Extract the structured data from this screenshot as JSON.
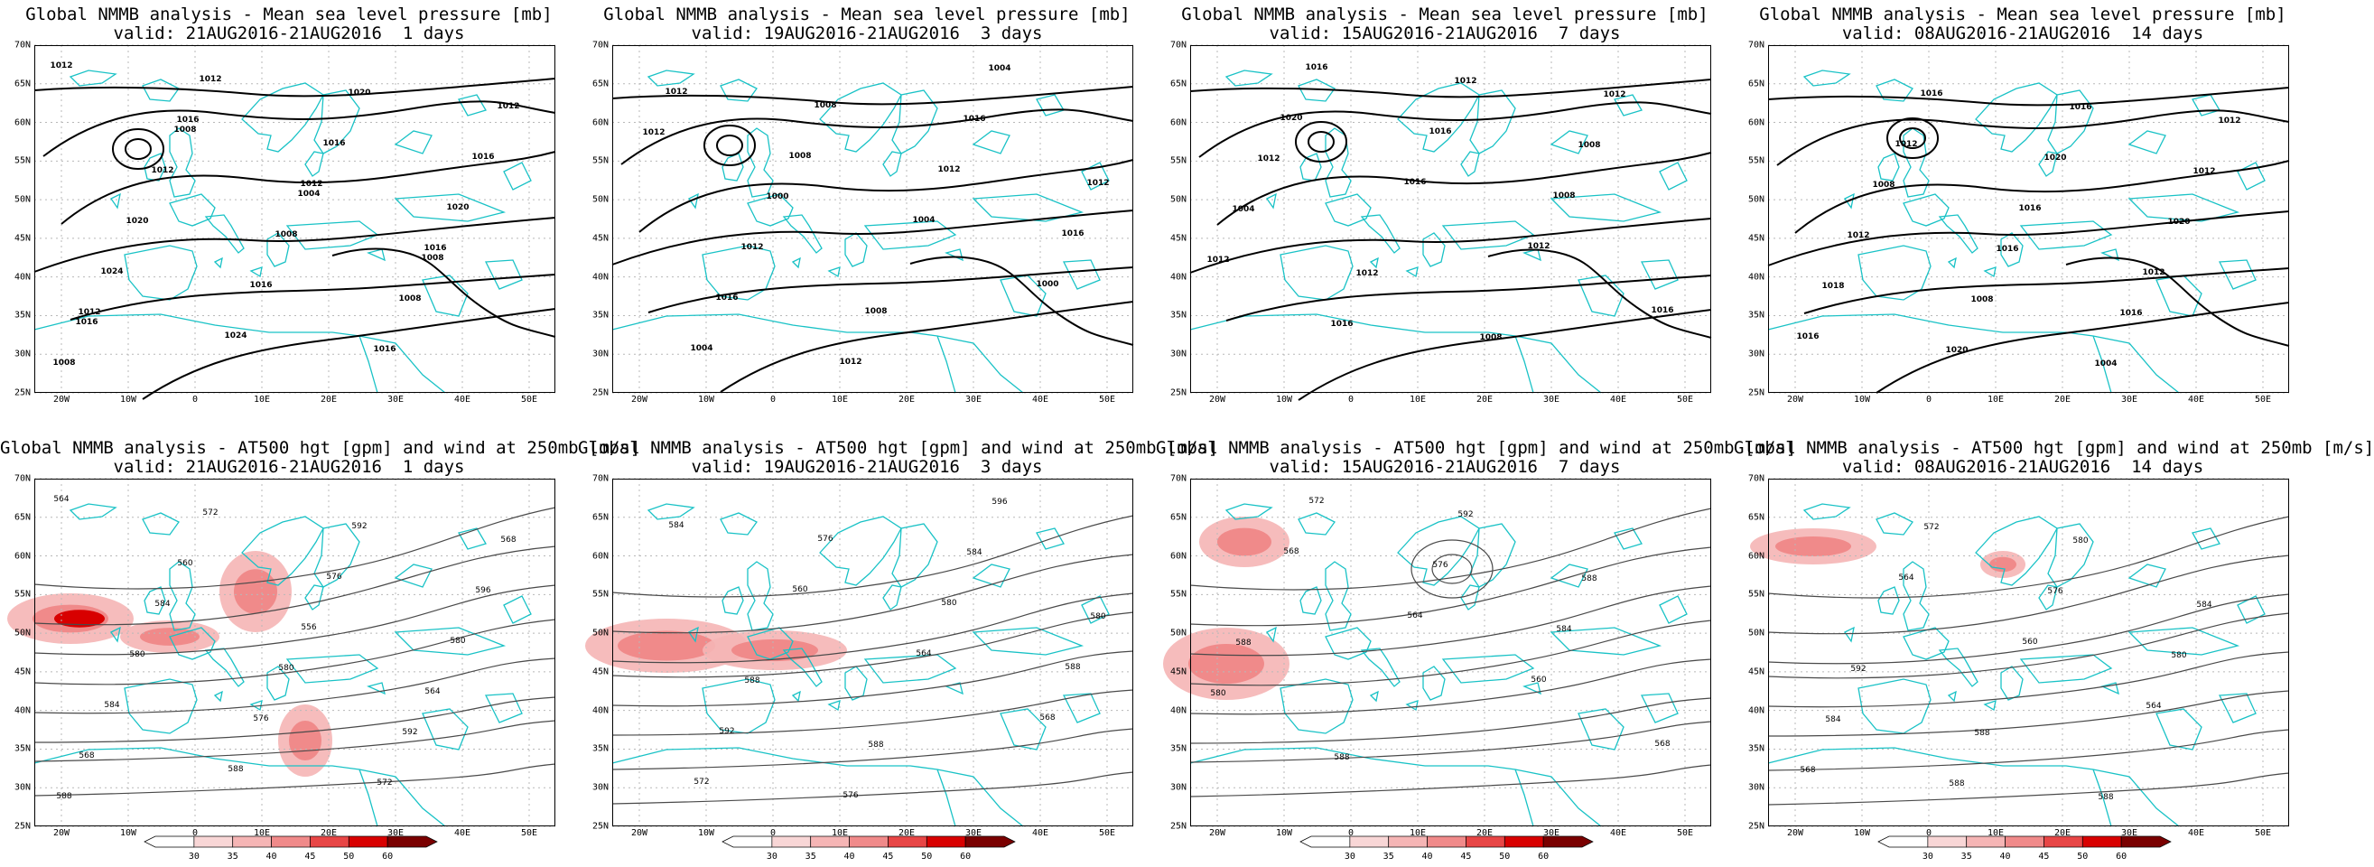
{
  "colors": {
    "coastline": "#19c2c6",
    "isobar": "#000000",
    "contour": "#4a4a4a",
    "grid": "#b8b8b8",
    "wind_scale": [
      "#ffffff",
      "#f8d6d6",
      "#f5b5b5",
      "#f08a8a",
      "#e84646",
      "#d80000",
      "#7a0000"
    ]
  },
  "axes": {
    "lat_labels": [
      "70N",
      "65N",
      "60N",
      "55N",
      "50N",
      "45N",
      "40N",
      "35N",
      "30N",
      "25N"
    ],
    "lon_labels": [
      "20W",
      "10W",
      "0",
      "10E",
      "20E",
      "30E",
      "40E",
      "50E"
    ]
  },
  "colorbar_labels": [
    "30",
    "35",
    "40",
    "45",
    "50",
    "60"
  ],
  "mslp_panels": [
    {
      "title": "Global NMMB analysis - Mean sea level pressure [mb]",
      "subtitle": "valid: 21AUG2016-21AUG2016  1 days",
      "labels": [
        "1012",
        "1008",
        "1004",
        "1008",
        "1016",
        "1012",
        "1016",
        "1020",
        "1024",
        "1024",
        "1020",
        "1016",
        "1020",
        "1016",
        "1016",
        "1012",
        "1012",
        "1008",
        "1008",
        "1008",
        "1016",
        "1012",
        "1016",
        "1012"
      ]
    },
    {
      "title": "Global NMMB analysis - Mean sea level pressure [mb]",
      "subtitle": "valid: 19AUG2016-21AUG2016  3 days",
      "labels": [
        "1012",
        "1008",
        "1004",
        "1000",
        "1004",
        "1008",
        "1012",
        "1016",
        "1016",
        "1012",
        "1016",
        "1012",
        "1012",
        "1008",
        "1004",
        "1012",
        "1000"
      ]
    },
    {
      "title": "Global NMMB analysis - Mean sea level pressure [mb]",
      "subtitle": "valid: 15AUG2016-21AUG2016  7 days",
      "labels": [
        "1020",
        "1016",
        "1012",
        "1016",
        "1016",
        "1016",
        "1008",
        "1012",
        "1016",
        "1012",
        "1008",
        "1004",
        "1012",
        "1008",
        "1012",
        "1012"
      ]
    },
    {
      "title": "Global NMMB analysis - Mean sea level pressure [mb]",
      "subtitle": "valid: 08AUG2016-21AUG2016  14 days",
      "labels": [
        "1012",
        "1016",
        "1012",
        "1016",
        "1016",
        "1020",
        "1020",
        "1018",
        "1020",
        "1016",
        "1012",
        "1012",
        "1008",
        "1004",
        "1012",
        "1008",
        "1016",
        "1016"
      ]
    }
  ],
  "z500_panels": [
    {
      "title": "Global NMMB analysis - AT500 hgt [gpm] and wind at 250mb [m/s]",
      "subtitle": "valid: 21AUG2016-21AUG2016  1 days",
      "labels": [
        "564",
        "560",
        "556",
        "564",
        "568",
        "572",
        "576",
        "580",
        "584",
        "588",
        "592",
        "596",
        "580",
        "576",
        "572",
        "568",
        "584",
        "580",
        "592",
        "588"
      ]
    },
    {
      "title": "Global NMMB analysis - AT500 hgt [gpm] and wind at 250mb [m/s]",
      "subtitle": "valid: 19AUG2016-21AUG2016  3 days",
      "labels": [
        "584",
        "560",
        "564",
        "568",
        "572",
        "576",
        "580",
        "588",
        "592",
        "576",
        "584",
        "580",
        "588",
        "588",
        "596"
      ]
    },
    {
      "title": "Global NMMB analysis - AT500 hgt [gpm] and wind at 250mb [m/s]",
      "subtitle": "valid: 15AUG2016-21AUG2016  7 days",
      "labels": [
        "568",
        "564",
        "560",
        "568",
        "572",
        "576",
        "584",
        "580",
        "588",
        "592",
        "588",
        "588"
      ]
    },
    {
      "title": "Global NMMB analysis - AT500 hgt [gpm] and wind at 250mb [m/s]",
      "subtitle": "valid: 08AUG2016-21AUG2016  14 days",
      "labels": [
        "564",
        "560",
        "564",
        "568",
        "572",
        "576",
        "580",
        "584",
        "588",
        "580",
        "584",
        "592",
        "588",
        "588"
      ]
    }
  ]
}
